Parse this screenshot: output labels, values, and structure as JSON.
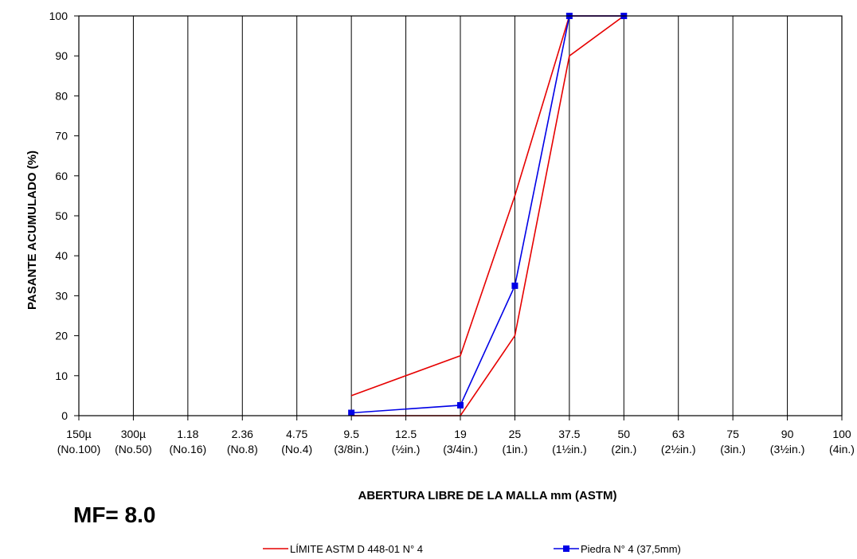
{
  "chart_data": {
    "type": "line",
    "title": "",
    "xlabel": "ABERTURA  LIBRE DE LA MALLA mm (ASTM)",
    "ylabel": "PASANTE ACUMULADO   (%)",
    "ylim": [
      0,
      100
    ],
    "yticks": [
      "0",
      "10",
      "20",
      "30",
      "40",
      "50",
      "60",
      "70",
      "80",
      "90",
      "100"
    ],
    "categories": [
      {
        "top": "150µ",
        "bottom": "(No.100)"
      },
      {
        "top": "300µ",
        "bottom": "(No.50)"
      },
      {
        "top": "1.18",
        "bottom": "(No.16)"
      },
      {
        "top": "2.36",
        "bottom": "(No.8)"
      },
      {
        "top": "4.75",
        "bottom": "(No.4)"
      },
      {
        "top": "9.5",
        "bottom": "(3/8in.)"
      },
      {
        "top": "12.5",
        "bottom": "(½in.)"
      },
      {
        "top": "19",
        "bottom": "(3/4in.)"
      },
      {
        "top": "25",
        "bottom": "(1in.)"
      },
      {
        "top": "37.5",
        "bottom": "(1½in.)"
      },
      {
        "top": "50",
        "bottom": "(2in.)"
      },
      {
        "top": "63",
        "bottom": "(2½in.)"
      },
      {
        "top": "75",
        "bottom": "(3in.)"
      },
      {
        "top": "90",
        "bottom": "(3½in.)"
      },
      {
        "top": "100",
        "bottom": "(4in.)"
      }
    ],
    "grid": "vertical",
    "legend_position": "bottom",
    "series": [
      {
        "name": "LÍMITE ASTM D 448-01 N° 4",
        "color": "#e60000",
        "marker": "none",
        "points": [
          {
            "x": "9.5",
            "y": 5
          },
          {
            "x": "19",
            "y": 15
          },
          {
            "x": "25",
            "y": 55
          },
          {
            "x": "37.5",
            "y": 100
          },
          {
            "x": "50",
            "y": 100
          }
        ]
      },
      {
        "name": "",
        "color": "#e60000",
        "marker": "none",
        "points": [
          {
            "x": "9.5",
            "y": 0
          },
          {
            "x": "19",
            "y": 0
          },
          {
            "x": "25",
            "y": 20
          },
          {
            "x": "37.5",
            "y": 90
          },
          {
            "x": "50",
            "y": 100
          }
        ]
      },
      {
        "name": "Piedra N° 4 (37,5mm)",
        "color": "#0000e6",
        "marker": "square",
        "points": [
          {
            "x": "9.5",
            "y": 0.7
          },
          {
            "x": "19",
            "y": 2.6
          },
          {
            "x": "25",
            "y": 32.5
          },
          {
            "x": "37.5",
            "y": 100
          },
          {
            "x": "50",
            "y": 100
          }
        ]
      }
    ]
  },
  "annotation": {
    "mf": "MF= 8.0"
  },
  "legend": {
    "items": [
      {
        "label": "LÍMITE ASTM D 448-01 N° 4",
        "color": "#e60000",
        "marker": "none"
      },
      {
        "label": "Piedra N° 4 (37,5mm)",
        "color": "#0000e6",
        "marker": "square"
      }
    ]
  }
}
